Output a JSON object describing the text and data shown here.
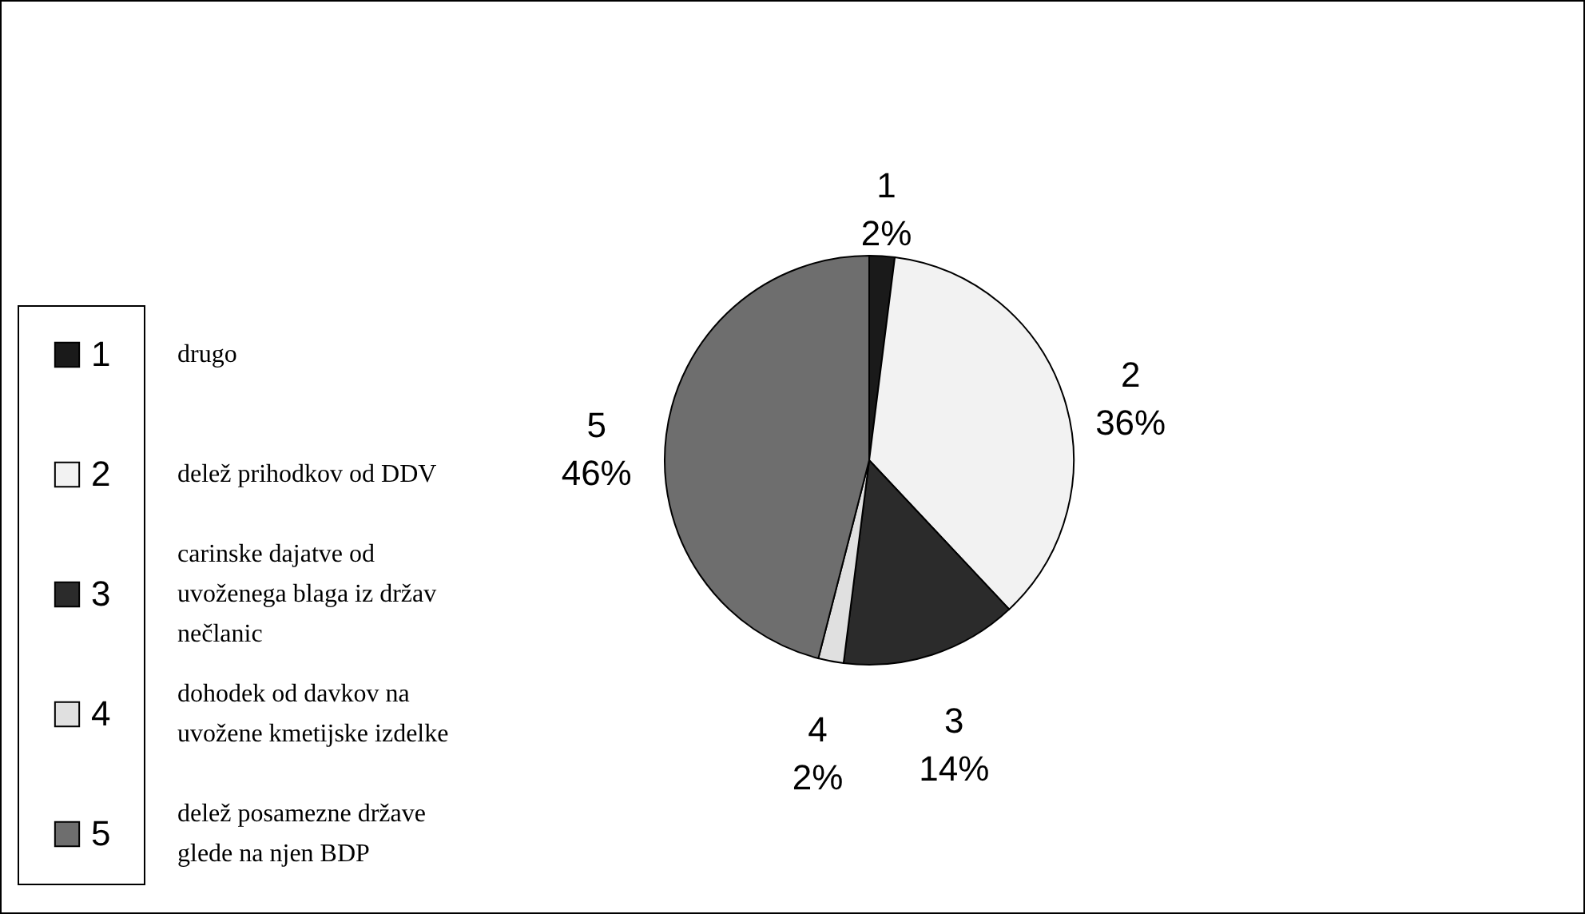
{
  "chart_data": {
    "type": "pie",
    "categories": [
      "1",
      "2",
      "3",
      "4",
      "5"
    ],
    "values": [
      2,
      36,
      14,
      2,
      46
    ],
    "value_labels": [
      "2%",
      "36%",
      "14%",
      "2%",
      "46%"
    ],
    "colors": [
      "#1a1a1a",
      "#f2f2f2",
      "#2b2b2b",
      "#e0e0e0",
      "#6e6e6e"
    ],
    "legend": "left",
    "annotations": [
      "drugo",
      "delež prihodkov od DDV",
      "carinske dajatve od uvoženega blaga iz držav nečlanic",
      "dohodek od davkov na uvožene kmetijske izdelke",
      "delež posamezne države glede na njen BDP"
    ]
  }
}
